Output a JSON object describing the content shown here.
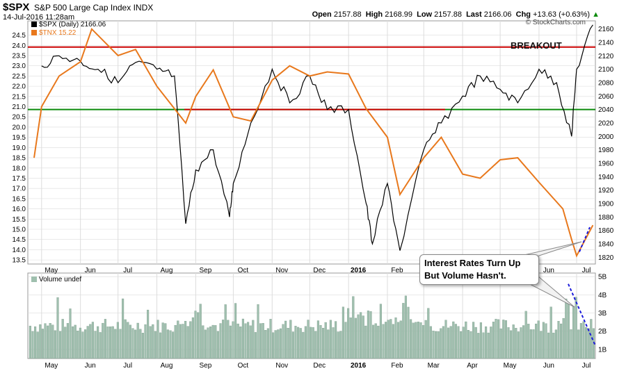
{
  "header": {
    "symbol": "$SPX",
    "name": "S&P 500 Large Cap Index",
    "exchange": "INDX",
    "datetime": "14-Jul-2016 11:28am",
    "open_label": "Open",
    "open": "2157.88",
    "high_label": "High",
    "high": "2168.99",
    "low_label": "Low",
    "low": "2157.88",
    "last_label": "Last",
    "last": "2166.06",
    "chg_label": "Chg",
    "chg": "+13.63 (+0.63%)",
    "chg_arrow": "▲",
    "credit": "© StockCharts.com"
  },
  "legend": {
    "spx": "$SPX (Daily) 2166.06",
    "tnx": "$TNX 15.22",
    "volume": "Volume undef"
  },
  "annotations": {
    "breakout": "BREAKOUT",
    "callout_line1": "Interest Rates Turn Up",
    "callout_line2": "But Volume Hasn't."
  },
  "colors": {
    "price": "#000000",
    "tnx": "#e8781c",
    "resistance": "#cc0000",
    "support": "#0a8a0a",
    "volume_bar": "#9fbfae",
    "volume_edge": "#6e8f7f",
    "trend": "#1a1adb",
    "grid": "#dcdcdc"
  },
  "chart_data": [
    {
      "type": "line",
      "series": [
        {
          "name": "$SPX (Daily) 2166.06",
          "axis": "right",
          "points": [
            [
              "2015-05",
              2105
            ],
            [
              "2015-05-15",
              2120
            ],
            [
              "2015-06",
              2112
            ],
            [
              "2015-06-15",
              2100
            ],
            [
              "2015-07",
              2080
            ],
            [
              "2015-07-15",
              2110
            ],
            [
              "2015-08",
              2100
            ],
            [
              "2015-08-15",
              2090
            ],
            [
              "2015-08-24",
              1870
            ],
            [
              "2015-09",
              1950
            ],
            [
              "2015-09-15",
              1980
            ],
            [
              "2015-09-28",
              1880
            ],
            [
              "2015-10",
              1930
            ],
            [
              "2015-10-15",
              2020
            ],
            [
              "2015-11",
              2100
            ],
            [
              "2015-11-15",
              2050
            ],
            [
              "2015-12",
              2090
            ],
            [
              "2015-12-15",
              2040
            ],
            [
              "2016-01",
              2040
            ],
            [
              "2016-01-15",
              1900
            ],
            [
              "2016-01-20",
              1840
            ],
            [
              "2016-02",
              1930
            ],
            [
              "2016-02-11",
              1830
            ],
            [
              "2016-03",
              1980
            ],
            [
              "2016-03-15",
              2020
            ],
            [
              "2016-04",
              2060
            ],
            [
              "2016-04-15",
              2090
            ],
            [
              "2016-05",
              2070
            ],
            [
              "2016-05-15",
              2050
            ],
            [
              "2016-06",
              2100
            ],
            [
              "2016-06-15",
              2080
            ],
            [
              "2016-06-27",
              2000
            ],
            [
              "2016-07",
              2100
            ],
            [
              "2016-07-14",
              2166
            ]
          ]
        },
        {
          "name": "$TNX 15.22",
          "axis": "left",
          "points": [
            [
              "2015-04-25",
              18.5
            ],
            [
              "2015-05",
              21.0
            ],
            [
              "2015-05-15",
              22.5
            ],
            [
              "2015-06",
              23.2
            ],
            [
              "2015-06-10",
              24.8
            ],
            [
              "2015-07",
              23.5
            ],
            [
              "2015-07-15",
              23.8
            ],
            [
              "2015-08",
              22.0
            ],
            [
              "2015-08-24",
              20.2
            ],
            [
              "2015-09",
              21.5
            ],
            [
              "2015-09-15",
              22.8
            ],
            [
              "2015-10",
              20.5
            ],
            [
              "2015-10-15",
              20.3
            ],
            [
              "2015-11",
              22.3
            ],
            [
              "2015-11-15",
              23.0
            ],
            [
              "2015-12",
              22.5
            ],
            [
              "2015-12-15",
              22.7
            ],
            [
              "2016-01",
              22.6
            ],
            [
              "2016-01-15",
              20.9
            ],
            [
              "2016-02",
              19.5
            ],
            [
              "2016-02-11",
              16.7
            ],
            [
              "2016-03",
              18.5
            ],
            [
              "2016-03-15",
              19.5
            ],
            [
              "2016-04",
              17.7
            ],
            [
              "2016-04-15",
              17.5
            ],
            [
              "2016-05",
              18.4
            ],
            [
              "2016-05-15",
              18.5
            ],
            [
              "2016-06",
              17.3
            ],
            [
              "2016-06-20",
              16.0
            ],
            [
              "2016-06-27",
              14.5
            ],
            [
              "2016-07",
              13.7
            ],
            [
              "2016-07-14",
              15.2
            ]
          ]
        }
      ],
      "left_axis_ticks": [
        "13.5",
        "14.0",
        "14.5",
        "15.0",
        "15.5",
        "16.0",
        "16.5",
        "17.0",
        "17.5",
        "18.0",
        "18.5",
        "19.0",
        "19.5",
        "20.0",
        "20.5",
        "21.0",
        "21.5",
        "22.0",
        "22.5",
        "23.0",
        "23.5",
        "24.0",
        "24.5"
      ],
      "right_axis_ticks": [
        "1820",
        "1840",
        "1860",
        "1880",
        "1900",
        "1920",
        "1940",
        "1960",
        "1980",
        "2000",
        "2020",
        "2040",
        "2060",
        "2080",
        "2100",
        "2120",
        "2140",
        "2160"
      ],
      "ylim_left": [
        13.3,
        25.2
      ],
      "ylim_right": [
        1810,
        2172
      ],
      "x_ticks": [
        "May",
        "Jun",
        "Jul",
        "Aug",
        "Sep",
        "Oct",
        "Nov",
        "Dec",
        "2016",
        "Feb",
        "Mar",
        "Apr",
        "May",
        "Jun",
        "Jul"
      ],
      "horizontal_lines": [
        {
          "value": 2133,
          "axis": "right",
          "color": "resistance"
        },
        {
          "value": 2040,
          "axis": "right",
          "color": "resistance"
        },
        {
          "value": 2040,
          "axis": "right",
          "color": "support"
        }
      ],
      "grid": true
    },
    {
      "type": "bar",
      "title": "Volume undef",
      "y_ticks": [
        "1B",
        "2B",
        "3B",
        "4B",
        "5B"
      ],
      "ylim": [
        0.5,
        5.2
      ],
      "x_ticks": [
        "May",
        "Jun",
        "Jul",
        "Aug",
        "Sep",
        "Oct",
        "Nov",
        "Dec",
        "2016",
        "Feb",
        "Mar",
        "Apr",
        "May",
        "Jun",
        "Jul"
      ],
      "grid": true
    }
  ]
}
